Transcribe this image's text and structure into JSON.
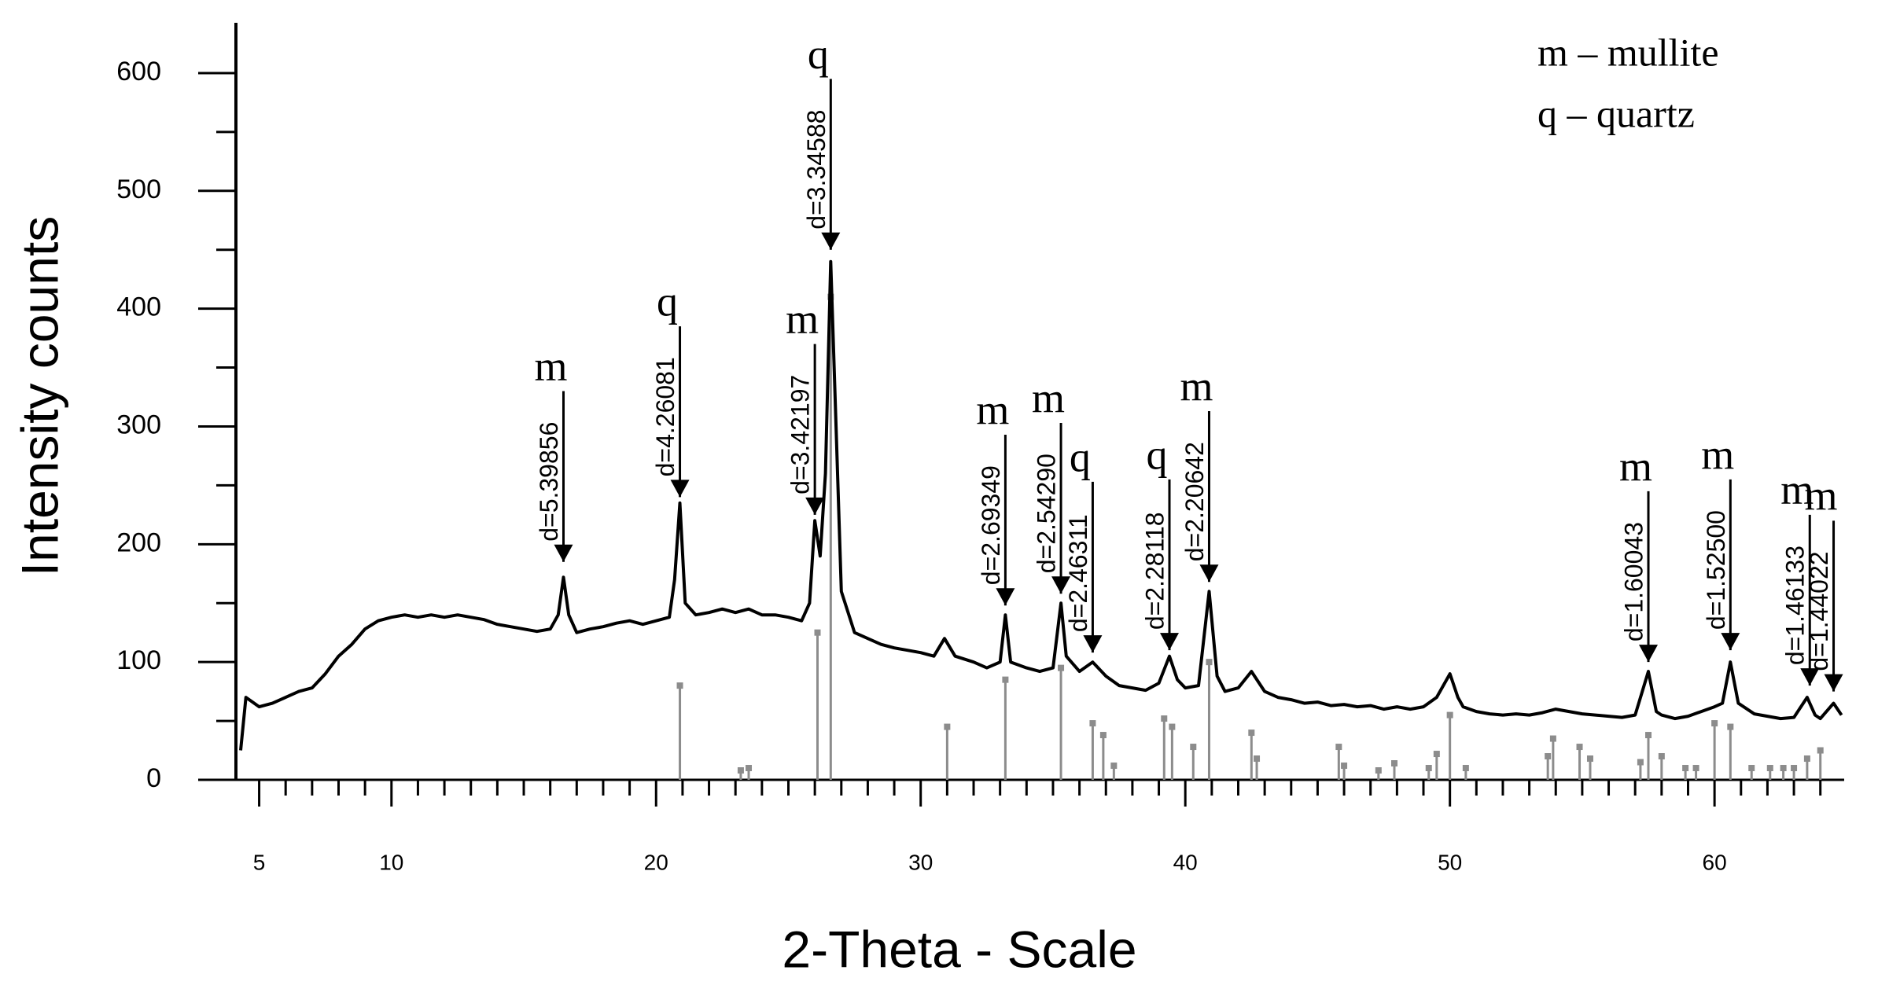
{
  "chart_data": {
    "type": "line",
    "x_label": "2-Theta - Scale",
    "y_label": "Intensity counts",
    "legend": [
      "m – mullite",
      "q – quartz"
    ],
    "color": "#000000",
    "xlim": [
      4.3,
      64.9
    ],
    "ylim": [
      0,
      640
    ],
    "xticks": [
      5,
      10,
      20,
      30,
      40,
      50,
      60
    ],
    "yticks": [
      0,
      100,
      200,
      300,
      400,
      500,
      600
    ],
    "x_minor_ticks": [
      6,
      7,
      8,
      9,
      11,
      12,
      13,
      14,
      15,
      16,
      17,
      18,
      19,
      21,
      22,
      23,
      24,
      25,
      26,
      27,
      28,
      29,
      31,
      32,
      33,
      34,
      35,
      36,
      37,
      38,
      39,
      41,
      42,
      43,
      44,
      45,
      46,
      47,
      48,
      49,
      51,
      52,
      53,
      54,
      55,
      56,
      57,
      58,
      59,
      61,
      62,
      63,
      64
    ],
    "y_minor_ticks": [
      50,
      150,
      250,
      350,
      450,
      550
    ],
    "x": [
      4.3,
      4.5,
      5,
      5.5,
      6,
      6.5,
      7,
      7.5,
      8,
      8.5,
      9,
      9.5,
      10,
      10.5,
      11,
      11.5,
      12,
      12.5,
      13,
      13.5,
      14,
      14.5,
      15,
      15.5,
      16,
      16.3,
      16.5,
      16.7,
      17,
      17.5,
      18,
      18.5,
      19,
      19.5,
      20,
      20.5,
      20.7,
      20.9,
      21.1,
      21.5,
      22,
      22.5,
      23,
      23.5,
      24,
      24.5,
      25,
      25.5,
      25.8,
      26.0,
      26.2,
      26.4,
      26.6,
      26.8,
      27,
      27.5,
      28,
      28.5,
      29,
      29.5,
      30,
      30.5,
      30.9,
      31.3,
      32,
      32.5,
      33,
      33.2,
      33.4,
      34,
      34.5,
      35,
      35.3,
      35.5,
      36,
      36.5,
      37,
      37.5,
      38,
      38.5,
      39,
      39.4,
      39.7,
      40,
      40.5,
      40.9,
      41.2,
      41.5,
      42,
      42.5,
      43,
      43.5,
      44,
      44.5,
      45,
      45.5,
      46,
      46.5,
      47,
      47.5,
      48,
      48.5,
      49,
      49.5,
      50,
      50.3,
      50.5,
      51,
      51.5,
      52,
      52.5,
      53,
      53.5,
      54,
      54.5,
      55,
      55.5,
      56,
      56.5,
      57,
      57.5,
      57.8,
      58,
      58.5,
      59,
      59.5,
      60,
      60.3,
      60.6,
      60.9,
      61.5,
      62,
      62.5,
      63,
      63.5,
      63.8,
      64,
      64.5,
      64.8
    ],
    "values": [
      25,
      70,
      62,
      65,
      70,
      75,
      78,
      90,
      105,
      115,
      128,
      135,
      138,
      140,
      138,
      140,
      138,
      140,
      138,
      136,
      132,
      130,
      128,
      126,
      128,
      140,
      172,
      140,
      125,
      128,
      130,
      133,
      135,
      132,
      135,
      138,
      170,
      235,
      150,
      140,
      142,
      145,
      142,
      145,
      140,
      140,
      138,
      135,
      150,
      220,
      190,
      260,
      440,
      300,
      160,
      125,
      120,
      115,
      112,
      110,
      108,
      105,
      120,
      105,
      100,
      95,
      100,
      140,
      100,
      95,
      92,
      95,
      150,
      105,
      92,
      100,
      88,
      80,
      78,
      76,
      82,
      105,
      85,
      78,
      80,
      160,
      88,
      75,
      78,
      92,
      75,
      70,
      68,
      65,
      66,
      63,
      64,
      62,
      63,
      60,
      62,
      60,
      62,
      70,
      90,
      70,
      62,
      58,
      56,
      55,
      56,
      55,
      57,
      60,
      58,
      56,
      55,
      54,
      53,
      55,
      92,
      58,
      55,
      52,
      54,
      58,
      62,
      65,
      100,
      65,
      56,
      54,
      52,
      53,
      70,
      55,
      52,
      65,
      55
    ],
    "reference_lines": {
      "color": "#8c8c8c",
      "x": [
        20.9,
        23.2,
        23.5,
        26.1,
        26.6,
        31.0,
        33.2,
        35.3,
        36.5,
        36.9,
        37.3,
        39.2,
        39.5,
        40.3,
        40.9,
        42.5,
        42.7,
        45.8,
        46.0,
        47.3,
        47.9,
        49.2,
        49.5,
        50.0,
        50.6,
        53.7,
        53.9,
        54.9,
        55.3,
        57.2,
        57.5,
        58.0,
        58.9,
        59.3,
        60.0,
        60.6,
        61.4,
        62.1,
        62.6,
        63.0,
        63.5,
        64.0
      ],
      "values": [
        80,
        8,
        10,
        125,
        410,
        45,
        85,
        95,
        48,
        38,
        12,
        52,
        45,
        28,
        100,
        40,
        18,
        28,
        12,
        8,
        14,
        10,
        22,
        55,
        10,
        20,
        35,
        28,
        18,
        15,
        38,
        20,
        10,
        10,
        48,
        45,
        10,
        10,
        10,
        10,
        18,
        25
      ]
    },
    "peaks": [
      {
        "x": 16.5,
        "value": 185,
        "d_label": "d=5.39856",
        "phase": "m"
      },
      {
        "x": 20.9,
        "value": 240,
        "d_label": "d=4.26081",
        "phase": "q"
      },
      {
        "x": 26.0,
        "value": 225,
        "d_label": "d=3.42197",
        "phase": "m"
      },
      {
        "x": 26.6,
        "value": 450,
        "d_label": "d=3.34588",
        "phase": "q"
      },
      {
        "x": 33.2,
        "value": 148,
        "d_label": "d=2.69349",
        "phase": "m"
      },
      {
        "x": 35.3,
        "value": 158,
        "d_label": "d=2.54290",
        "phase": "m"
      },
      {
        "x": 36.5,
        "value": 108,
        "d_label": "d=2.46311",
        "phase": "q"
      },
      {
        "x": 39.4,
        "value": 110,
        "d_label": "d=2.28118",
        "phase": "q"
      },
      {
        "x": 40.9,
        "value": 168,
        "d_label": "d=2.20642",
        "phase": "m"
      },
      {
        "x": 57.5,
        "value": 100,
        "d_label": "d=1.60043",
        "phase": "m"
      },
      {
        "x": 60.6,
        "value": 110,
        "d_label": "d=1.52500",
        "phase": "m"
      },
      {
        "x": 63.6,
        "value": 80,
        "d_label": "d=1.46133",
        "phase": "m"
      },
      {
        "x": 64.5,
        "value": 75,
        "d_label": "d=1.44022",
        "phase": "m"
      }
    ]
  }
}
